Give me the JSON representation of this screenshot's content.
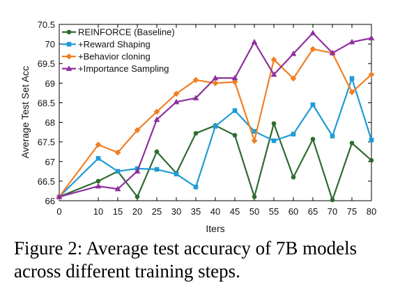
{
  "chart_data": {
    "type": "line",
    "xlabel": "Iters",
    "ylabel": "Average Test Set Acc",
    "xlim": [
      0,
      80
    ],
    "ylim": [
      66,
      70.5
    ],
    "xticks": [
      0,
      10,
      15,
      20,
      25,
      30,
      35,
      40,
      45,
      50,
      55,
      60,
      65,
      70,
      75,
      80
    ],
    "yticks": [
      66,
      66.5,
      67,
      67.5,
      68,
      68.5,
      69,
      69.5,
      70,
      70.5
    ],
    "ytick_labels": [
      "66",
      "66.5",
      "67",
      "67.5",
      "68",
      "68.5",
      "69",
      "69.5",
      "70",
      "70.5"
    ],
    "grid": false,
    "legend_position": "top-left",
    "x": [
      0,
      10,
      15,
      20,
      25,
      30,
      35,
      40,
      45,
      50,
      55,
      60,
      65,
      70,
      75,
      80
    ],
    "series": [
      {
        "name": "REINFORCE (Baseline)",
        "color": "#2e6b2e",
        "marker": "circle",
        "values": [
          66.1,
          66.5,
          66.75,
          66.1,
          67.25,
          66.7,
          67.72,
          67.92,
          67.67,
          66.1,
          67.97,
          66.6,
          67.57,
          66.02,
          67.47,
          67.03
        ]
      },
      {
        "name": "+Reward Shaping",
        "color": "#1f9bd6",
        "marker": "square",
        "values": [
          66.1,
          67.08,
          66.75,
          66.82,
          66.8,
          66.68,
          66.35,
          67.9,
          68.3,
          67.77,
          67.53,
          67.7,
          68.45,
          67.65,
          69.12,
          67.55
        ]
      },
      {
        "name": "+Behavior cloning",
        "color": "#f07f24",
        "marker": "diamond",
        "values": [
          66.1,
          67.43,
          67.23,
          67.8,
          68.27,
          68.73,
          69.08,
          69.0,
          69.03,
          67.53,
          69.6,
          69.12,
          69.87,
          69.77,
          68.77,
          69.22
        ]
      },
      {
        "name": "+Importance Sampling",
        "color": "#8e2f9e",
        "marker": "triangle",
        "values": [
          66.1,
          66.37,
          66.3,
          66.75,
          68.07,
          68.52,
          68.62,
          69.13,
          69.13,
          70.05,
          69.22,
          69.75,
          70.28,
          69.77,
          70.05,
          70.15
        ]
      }
    ]
  },
  "caption": "Figure 2: Average test accuracy of 7B models across different training steps."
}
